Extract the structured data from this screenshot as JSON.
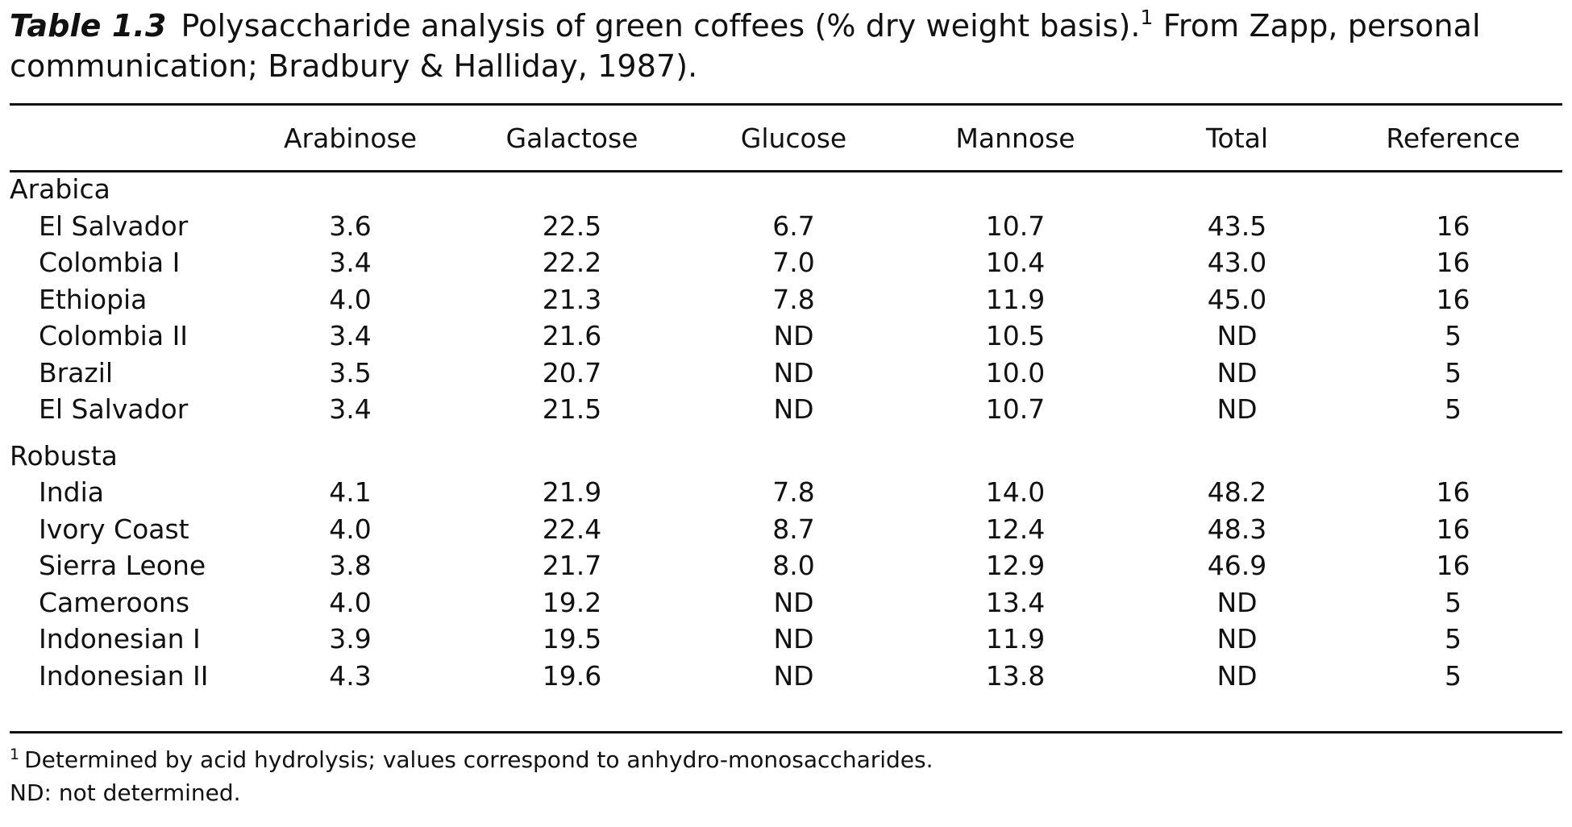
{
  "caption": {
    "label": "Table 1.3",
    "text_before_sup": "Polysaccharide analysis of green coffees (% dry weight basis).",
    "sup": "1",
    "text_line1_end": " From Zapp, personal",
    "text_line2": "communication; Bradbury & Halliday, 1987)."
  },
  "table": {
    "columns": [
      "",
      "Arabinose",
      "Galactose",
      "Glucose",
      "Mannose",
      "Total",
      "Reference"
    ],
    "groups": [
      {
        "name": "Arabica",
        "rows": [
          [
            "El Salvador",
            "3.6",
            "22.5",
            "6.7",
            "10.7",
            "43.5",
            "16"
          ],
          [
            "Colombia I",
            "3.4",
            "22.2",
            "7.0",
            "10.4",
            "43.0",
            "16"
          ],
          [
            "Ethiopia",
            "4.0",
            "21.3",
            "7.8",
            "11.9",
            "45.0",
            "16"
          ],
          [
            "Colombia II",
            "3.4",
            "21.6",
            "ND",
            "10.5",
            "ND",
            "5"
          ],
          [
            "Brazil",
            "3.5",
            "20.7",
            "ND",
            "10.0",
            "ND",
            "5"
          ],
          [
            "El Salvador",
            "3.4",
            "21.5",
            "ND",
            "10.7",
            "ND",
            "5"
          ]
        ]
      },
      {
        "name": "Robusta",
        "rows": [
          [
            "India",
            "4.1",
            "21.9",
            "7.8",
            "14.0",
            "48.2",
            "16"
          ],
          [
            "Ivory Coast",
            "4.0",
            "22.4",
            "8.7",
            "12.4",
            "48.3",
            "16"
          ],
          [
            "Sierra Leone",
            "3.8",
            "21.7",
            "8.0",
            "12.9",
            "46.9",
            "16"
          ],
          [
            "Cameroons",
            "4.0",
            "19.2",
            "ND",
            "13.4",
            "ND",
            "5"
          ],
          [
            "Indonesian I",
            "3.9",
            "19.5",
            "ND",
            "11.9",
            "ND",
            "5"
          ],
          [
            "Indonesian II",
            "4.3",
            "19.6",
            "ND",
            "13.8",
            "ND",
            "5"
          ]
        ]
      }
    ]
  },
  "footnotes": {
    "note1_marker": "1",
    "note1_text": "Determined by acid hydrolysis; values correspond to anhydro-monosaccharides.",
    "note2_text": "ND: not determined."
  }
}
